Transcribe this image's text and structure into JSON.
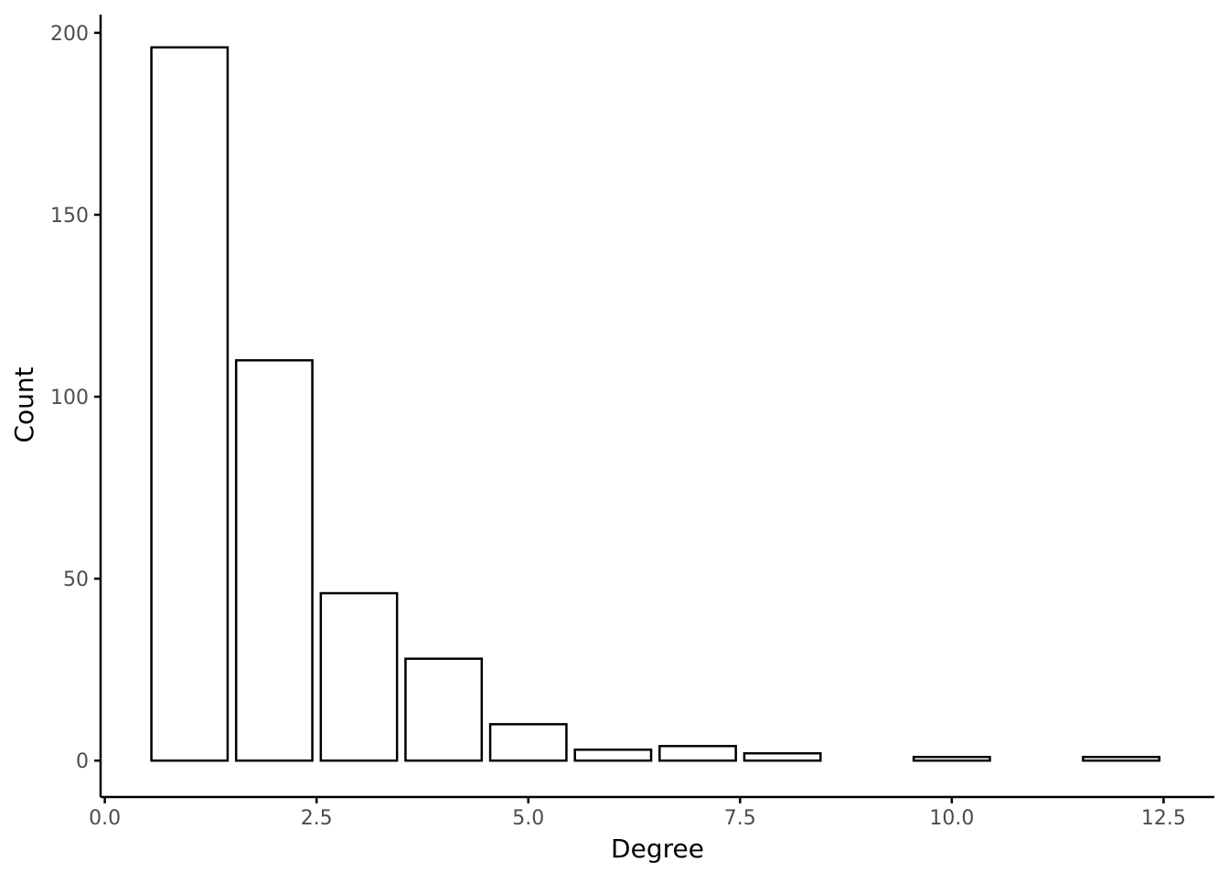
{
  "chart_data": {
    "type": "bar",
    "xlabel": "Degree",
    "ylabel": "Count",
    "x": [
      1,
      2,
      3,
      4,
      5,
      6,
      7,
      8,
      10,
      12
    ],
    "values": [
      196,
      110,
      46,
      28,
      10,
      3,
      4,
      2,
      1,
      1
    ],
    "bar_width": 0.9,
    "xlim": [
      -0.05,
      13.1
    ],
    "ylim": [
      -10,
      205
    ],
    "x_ticks": [
      0,
      2.5,
      5,
      7.5,
      10,
      12.5
    ],
    "x_tick_labels": [
      "0.0",
      "2.5",
      "5.0",
      "7.5",
      "10.0",
      "12.5"
    ],
    "y_ticks": [
      0,
      50,
      100,
      150,
      200
    ],
    "y_tick_labels": [
      "0",
      "50",
      "100",
      "150",
      "200"
    ],
    "grid": false,
    "colors": {
      "bar_fill": "#ffffff",
      "bar_stroke": "#000000",
      "tick_text": "#4d4d4d"
    }
  }
}
